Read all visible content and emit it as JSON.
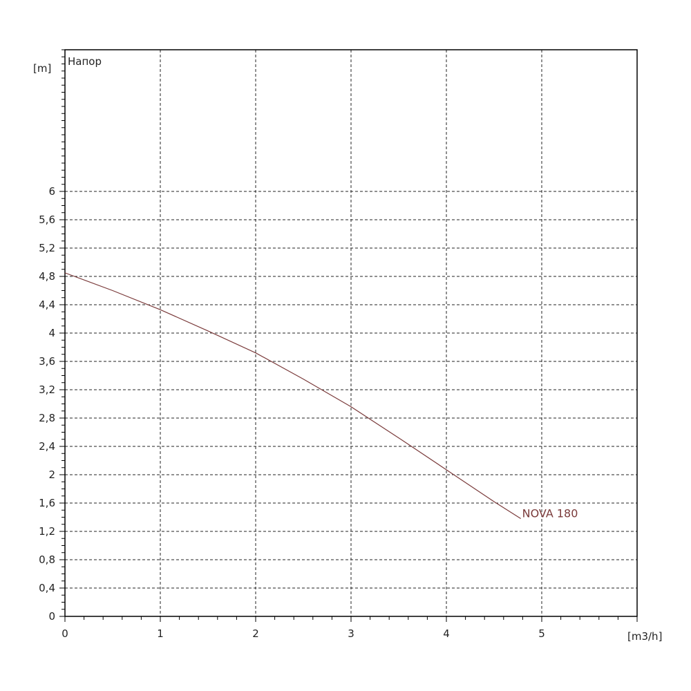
{
  "chart_data": {
    "type": "line",
    "title": "Напор",
    "ylabel": "[m]",
    "xlabel": "[m3/h]",
    "xlim": [
      0,
      6
    ],
    "ylim": [
      0,
      8.0
    ],
    "x_ticks": [
      0,
      1,
      2,
      3,
      4,
      5
    ],
    "x_tick_labels": [
      "0",
      "1",
      "2",
      "3",
      "4",
      "5"
    ],
    "y_ticks": [
      0,
      0.4,
      0.8,
      1.2,
      1.6,
      2,
      2.4,
      2.8,
      3.2,
      3.6,
      4,
      4.4,
      4.8,
      5.2,
      5.6,
      6
    ],
    "y_tick_labels": [
      "0",
      "0,4",
      "0,8",
      "1,2",
      "1,6",
      "2",
      "2,4",
      "2,8",
      "3,2",
      "3,6",
      "4",
      "4,4",
      "4,8",
      "5,2",
      "5,6",
      "6"
    ],
    "grid": true,
    "series": [
      {
        "name": "NOVA 180",
        "color": "#7a3a3a",
        "x": [
          0,
          0.5,
          1,
          1.5,
          2,
          2.5,
          3,
          3.5,
          4,
          4.5,
          4.78
        ],
        "y": [
          4.85,
          4.6,
          4.33,
          4.03,
          3.72,
          3.35,
          2.96,
          2.52,
          2.07,
          1.62,
          1.38
        ]
      }
    ]
  }
}
